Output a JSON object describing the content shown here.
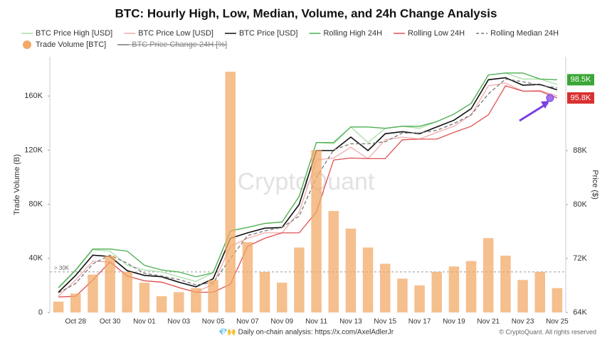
{
  "chart_data": {
    "type": "line",
    "title": "BTC: Hourly High, Low, Median, Volume, and 24h Change Analysis",
    "y_label": "Trade Volume (B)",
    "y2_label": "Price ($)",
    "watermark": "CryptoQuant",
    "footer": "💎🙌 Daily on-chain analysis: https://x.com/AxelAdlerJr",
    "copyright": "© CryptoQuant. All rights reserved",
    "categories": [
      null,
      "Oct 28",
      null,
      "Oct 30",
      null,
      "Nov 01",
      null,
      "Nov 03",
      null,
      "Nov 05",
      null,
      "Nov 07",
      null,
      "Nov 09",
      null,
      "Nov 11",
      null,
      "Nov 13",
      null,
      "Nov 15",
      null,
      "Nov 17",
      null,
      "Nov 19",
      null,
      "Nov 21",
      null,
      "Nov 23",
      null,
      "Nov 25"
    ],
    "ylim": [
      0,
      189000
    ],
    "yticks": [
      {
        "value": 0,
        "label": "0"
      },
      {
        "value": 40000,
        "label": "40K"
      },
      {
        "value": 80000,
        "label": "80K"
      },
      {
        "value": 120000,
        "label": "120K"
      },
      {
        "value": 160000,
        "label": "160K"
      }
    ],
    "y2lim": [
      64000,
      101900
    ],
    "y2ticks": [
      {
        "value": 64000,
        "label": "64K"
      },
      {
        "value": 72000,
        "label": "72K"
      },
      {
        "value": 80000,
        "label": "80K"
      },
      {
        "value": 88000,
        "label": "88K"
      }
    ],
    "reference_line": {
      "value": 30000,
      "label": "> 30K"
    },
    "end_labels": [
      {
        "value": 98500,
        "label": "98.5K",
        "color": "#3aa635"
      },
      {
        "value": 95800,
        "label": "95.8K",
        "color": "#d93030"
      }
    ],
    "series": [
      {
        "name": "BTC Price High [USD]",
        "color": "#a9dfa9",
        "axis": "y2",
        "values": [
          67600,
          70200,
          73300,
          73100,
          71000,
          70300,
          70000,
          69300,
          68600,
          69900,
          76100,
          76600,
          77200,
          77400,
          81200,
          89200,
          89000,
          91500,
          89200,
          91300,
          91600,
          91300,
          92300,
          93400,
          95000,
          99200,
          99500,
          98600,
          98600,
          97800
        ]
      },
      {
        "name": "BTC Price Low [USD]",
        "color": "#f3aaaa",
        "axis": "y2",
        "values": [
          66400,
          68800,
          71600,
          71500,
          69400,
          68700,
          68500,
          67700,
          67000,
          68200,
          73800,
          75000,
          75800,
          75800,
          78900,
          86600,
          86900,
          88500,
          86800,
          89600,
          90000,
          89700,
          90700,
          91600,
          93300,
          97600,
          98000,
          96800,
          96900,
          96100
        ]
      },
      {
        "name": "BTC Price [USD]",
        "color": "#111111",
        "axis": "y2",
        "values": [
          67000,
          69500,
          72500,
          72300,
          70200,
          69500,
          69300,
          68500,
          67800,
          69000,
          75000,
          75800,
          76500,
          76600,
          80000,
          88000,
          88000,
          90000,
          88000,
          90500,
          90800,
          90500,
          91500,
          92500,
          94200,
          98500,
          98800,
          97700,
          97800,
          97000
        ]
      },
      {
        "name": "Rolling High 24H",
        "color": "#4caf50",
        "axis": "y2",
        "values": [
          67700,
          70300,
          73400,
          73400,
          73100,
          71000,
          70300,
          70000,
          69300,
          69900,
          76100,
          76600,
          77200,
          77400,
          81200,
          89200,
          89200,
          91500,
          91500,
          91300,
          91600,
          91600,
          92300,
          93400,
          95000,
          99200,
          99500,
          99500,
          98600,
          98500
        ]
      },
      {
        "name": "Rolling Low 24H",
        "color": "#e05050",
        "axis": "y2",
        "values": [
          66300,
          66400,
          68800,
          71500,
          69400,
          68700,
          68500,
          67700,
          67000,
          67000,
          68200,
          73800,
          75000,
          75800,
          75800,
          78900,
          86600,
          86900,
          86800,
          86800,
          89600,
          89700,
          89700,
          90700,
          91600,
          93300,
          97600,
          96800,
          96800,
          95800
        ]
      },
      {
        "name": "Rolling Median 24H",
        "color": "#777777",
        "axis": "y2",
        "dashed": true,
        "values": [
          66900,
          68300,
          71200,
          72500,
          71300,
          69800,
          69400,
          68900,
          68100,
          68400,
          72000,
          75400,
          76100,
          76600,
          78300,
          84000,
          88100,
          89000,
          89000,
          89300,
          90600,
          90600,
          91000,
          92000,
          93300,
          96400,
          98600,
          98200,
          97700,
          97300
        ]
      },
      {
        "name": "Trade Volume [BTC]",
        "color": "#f2a968",
        "type": "bar",
        "values": [
          8000,
          14000,
          28000,
          42000,
          30000,
          22000,
          12000,
          15000,
          18000,
          24000,
          178000,
          52000,
          30000,
          22000,
          48000,
          120000,
          75000,
          62000,
          48000,
          36000,
          25000,
          20000,
          30000,
          34000,
          38000,
          55000,
          42000,
          24000,
          30000,
          18000
        ]
      },
      {
        "name": "BTC Price Change 24H [%]",
        "color": "#555555",
        "hidden": true
      }
    ]
  }
}
